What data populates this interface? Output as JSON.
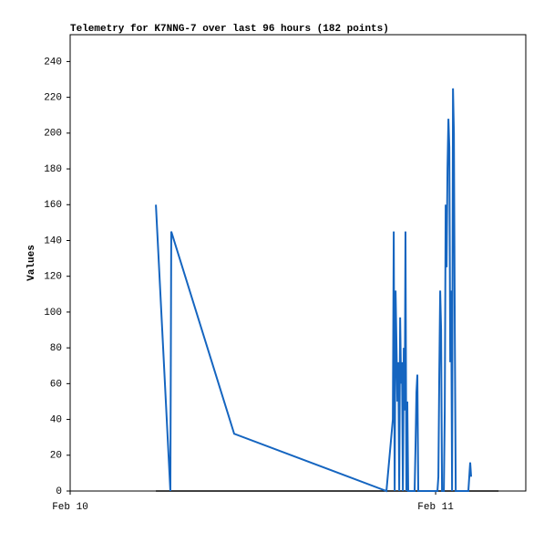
{
  "chart_data": {
    "type": "line",
    "title": "Telemetry for K7NNG-7 over last 96 hours (182 points)",
    "ylabel": "Values",
    "xlim": [
      0,
      29.92
    ],
    "ylim": [
      0,
      255
    ],
    "xticks": [
      {
        "value": 0,
        "label": "Feb 10"
      },
      {
        "value": 24,
        "label": "Feb 11"
      }
    ],
    "yticks": [
      0,
      20,
      40,
      60,
      80,
      100,
      120,
      140,
      160,
      180,
      200,
      220,
      240
    ],
    "series": [
      {
        "color": "#1565c0",
        "x": [
          5.63,
          6.58,
          6.64,
          10.77,
          20.77,
          21.19,
          21.25,
          21.31,
          21.37,
          21.49,
          21.55,
          21.61,
          21.67,
          21.73,
          21.79,
          21.85,
          21.91,
          21.97,
          22.02,
          22.08,
          22.14,
          22.2,
          22.62,
          22.68,
          22.74,
          22.8,
          22.86,
          24.12,
          24.18,
          24.24,
          24.3,
          24.36,
          24.42,
          24.54,
          24.6,
          24.66,
          24.72,
          24.78,
          24.84,
          24.9,
          24.96,
          25.02,
          25.08,
          25.14,
          25.2,
          25.26,
          25.32,
          26.15,
          26.21,
          26.27,
          26.33
        ],
        "values": [
          160,
          0,
          145,
          32,
          0,
          40,
          145,
          0,
          112,
          50,
          72,
          0,
          97,
          60,
          72,
          0,
          80,
          45,
          145,
          0,
          50,
          0,
          0,
          25,
          55,
          65,
          0,
          0,
          8,
          65,
          112,
          90,
          0,
          0,
          45,
          160,
          125,
          180,
          208,
          192,
          72,
          112,
          0,
          225,
          200,
          88,
          0,
          0,
          8,
          16,
          8
        ]
      },
      {
        "color": "#000000",
        "x": [
          5.63,
          28.13
        ],
        "values": [
          0,
          0
        ]
      }
    ]
  }
}
